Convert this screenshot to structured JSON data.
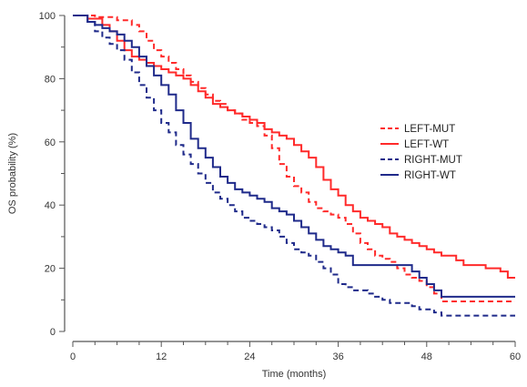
{
  "chart_data": {
    "type": "line",
    "subtype": "step (Kaplan-Meier survival curves)",
    "title": "",
    "xlabel": "Time (months)",
    "ylabel": "OS probability (%)",
    "xlim": [
      0,
      60
    ],
    "ylim": [
      0,
      100
    ],
    "xticks": [
      0,
      12,
      24,
      36,
      48,
      60
    ],
    "yticks": [
      0,
      20,
      40,
      60,
      80,
      100
    ],
    "grid": false,
    "legend_position": "right-center",
    "series": [
      {
        "name": "LEFT-MUT",
        "color": "#ff2a2a",
        "dash": "dashed",
        "points": [
          [
            0,
            100
          ],
          [
            3,
            99.5
          ],
          [
            6,
            98.5
          ],
          [
            8,
            97
          ],
          [
            9,
            95
          ],
          [
            10,
            92
          ],
          [
            11,
            89
          ],
          [
            12,
            87
          ],
          [
            13,
            85
          ],
          [
            14,
            83
          ],
          [
            15,
            81
          ],
          [
            16,
            79
          ],
          [
            17,
            77
          ],
          [
            18,
            75
          ],
          [
            19,
            73
          ],
          [
            20,
            72
          ],
          [
            21,
            70
          ],
          [
            22,
            69
          ],
          [
            23,
            67
          ],
          [
            24,
            66
          ],
          [
            25,
            65
          ],
          [
            26,
            62
          ],
          [
            27,
            58
          ],
          [
            28,
            53
          ],
          [
            29,
            49
          ],
          [
            30,
            46
          ],
          [
            31,
            44
          ],
          [
            32,
            41
          ],
          [
            33,
            39
          ],
          [
            34,
            38
          ],
          [
            35,
            37
          ],
          [
            36,
            36
          ],
          [
            37,
            34
          ],
          [
            38,
            31
          ],
          [
            39,
            28
          ],
          [
            40,
            26
          ],
          [
            41,
            24
          ],
          [
            42,
            23
          ],
          [
            43,
            22
          ],
          [
            44,
            20
          ],
          [
            45,
            18
          ],
          [
            46,
            17
          ],
          [
            47,
            16
          ],
          [
            48,
            14
          ],
          [
            49,
            12
          ],
          [
            50,
            9.5
          ],
          [
            60,
            9.5
          ]
        ]
      },
      {
        "name": "LEFT-WT",
        "color": "#ff2a2a",
        "dash": "solid",
        "points": [
          [
            0,
            100
          ],
          [
            2,
            99
          ],
          [
            4,
            97
          ],
          [
            5,
            95
          ],
          [
            6,
            92
          ],
          [
            7,
            89
          ],
          [
            8,
            87
          ],
          [
            9,
            86
          ],
          [
            10,
            85
          ],
          [
            11,
            84
          ],
          [
            12,
            83
          ],
          [
            13,
            82
          ],
          [
            14,
            81
          ],
          [
            15,
            80
          ],
          [
            16,
            78
          ],
          [
            17,
            76
          ],
          [
            18,
            74
          ],
          [
            19,
            72
          ],
          [
            20,
            71
          ],
          [
            21,
            70
          ],
          [
            22,
            69
          ],
          [
            23,
            68
          ],
          [
            24,
            67
          ],
          [
            25,
            66
          ],
          [
            26,
            64
          ],
          [
            27,
            63
          ],
          [
            28,
            62
          ],
          [
            29,
            61
          ],
          [
            30,
            59
          ],
          [
            31,
            57
          ],
          [
            32,
            55
          ],
          [
            33,
            52
          ],
          [
            34,
            48
          ],
          [
            35,
            45
          ],
          [
            36,
            43
          ],
          [
            37,
            40
          ],
          [
            38,
            38
          ],
          [
            39,
            36
          ],
          [
            40,
            35
          ],
          [
            41,
            34
          ],
          [
            42,
            33
          ],
          [
            43,
            31
          ],
          [
            44,
            30
          ],
          [
            45,
            29
          ],
          [
            46,
            28
          ],
          [
            47,
            27
          ],
          [
            48,
            26
          ],
          [
            49,
            25
          ],
          [
            50,
            24
          ],
          [
            52,
            22.5
          ],
          [
            53,
            21
          ],
          [
            55,
            21
          ],
          [
            56,
            20
          ],
          [
            57,
            20
          ],
          [
            58,
            19
          ],
          [
            59,
            17
          ],
          [
            60,
            17
          ]
        ]
      },
      {
        "name": "RIGHT-MUT",
        "color": "#1f2a8a",
        "dash": "dashed",
        "points": [
          [
            0,
            100
          ],
          [
            2,
            98
          ],
          [
            3,
            95
          ],
          [
            4,
            93
          ],
          [
            5,
            91
          ],
          [
            6,
            89
          ],
          [
            7,
            86
          ],
          [
            8,
            82
          ],
          [
            9,
            78
          ],
          [
            10,
            74
          ],
          [
            11,
            70
          ],
          [
            12,
            66
          ],
          [
            13,
            63
          ],
          [
            14,
            59
          ],
          [
            15,
            56
          ],
          [
            16,
            53
          ],
          [
            17,
            50
          ],
          [
            18,
            47
          ],
          [
            19,
            44
          ],
          [
            20,
            42
          ],
          [
            21,
            40
          ],
          [
            22,
            38
          ],
          [
            23,
            36
          ],
          [
            24,
            35
          ],
          [
            25,
            34
          ],
          [
            26,
            33
          ],
          [
            27,
            32
          ],
          [
            28,
            30
          ],
          [
            29,
            28
          ],
          [
            30,
            26
          ],
          [
            31,
            25
          ],
          [
            32,
            24
          ],
          [
            33,
            22
          ],
          [
            34,
            20
          ],
          [
            35,
            18
          ],
          [
            36,
            15
          ],
          [
            37,
            14
          ],
          [
            38,
            13
          ],
          [
            39,
            13
          ],
          [
            40,
            12
          ],
          [
            41,
            11
          ],
          [
            42,
            10
          ],
          [
            43,
            9
          ],
          [
            44,
            9
          ],
          [
            46,
            8
          ],
          [
            47,
            7
          ],
          [
            48,
            7
          ],
          [
            49,
            6
          ],
          [
            50,
            5
          ],
          [
            60,
            5
          ]
        ]
      },
      {
        "name": "RIGHT-WT",
        "color": "#1f2a8a",
        "dash": "solid",
        "points": [
          [
            0,
            100
          ],
          [
            2,
            98
          ],
          [
            3,
            97
          ],
          [
            4,
            96
          ],
          [
            5,
            95
          ],
          [
            6,
            94
          ],
          [
            7,
            92
          ],
          [
            8,
            90
          ],
          [
            9,
            87
          ],
          [
            10,
            84
          ],
          [
            11,
            81
          ],
          [
            12,
            78
          ],
          [
            13,
            75
          ],
          [
            14,
            70
          ],
          [
            15,
            66
          ],
          [
            16,
            61
          ],
          [
            17,
            58
          ],
          [
            18,
            55
          ],
          [
            19,
            52
          ],
          [
            20,
            49
          ],
          [
            21,
            47
          ],
          [
            22,
            45
          ],
          [
            23,
            44
          ],
          [
            24,
            43
          ],
          [
            25,
            42
          ],
          [
            26,
            41
          ],
          [
            27,
            39
          ],
          [
            28,
            38
          ],
          [
            29,
            37
          ],
          [
            30,
            35
          ],
          [
            31,
            33
          ],
          [
            32,
            31
          ],
          [
            33,
            29
          ],
          [
            34,
            27
          ],
          [
            35,
            26
          ],
          [
            36,
            25
          ],
          [
            37,
            24
          ],
          [
            38,
            21
          ],
          [
            39,
            21
          ],
          [
            40,
            21
          ],
          [
            41,
            21
          ],
          [
            43,
            21
          ],
          [
            45,
            21
          ],
          [
            46,
            19
          ],
          [
            47,
            17
          ],
          [
            48,
            15
          ],
          [
            49,
            13
          ],
          [
            50,
            11
          ],
          [
            60,
            11
          ]
        ]
      }
    ]
  }
}
